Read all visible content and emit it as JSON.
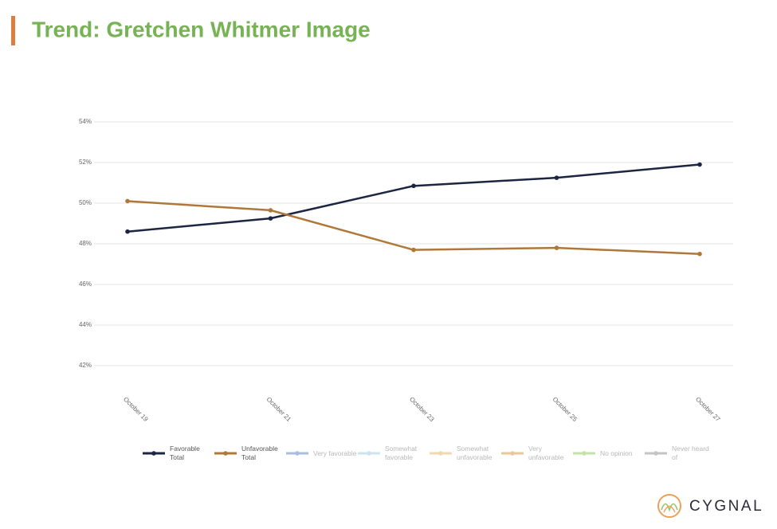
{
  "chart_data": {
    "type": "line",
    "title": "Trend: Gretchen Whitmer Image",
    "categories": [
      "October 19",
      "October 21",
      "October 23",
      "October 25",
      "October 27"
    ],
    "series": [
      {
        "name": "Favorable Total",
        "color": "#1c2541",
        "values": [
          48.6,
          49.25,
          50.85,
          51.25,
          51.9
        ]
      },
      {
        "name": "Unfavorable Total",
        "color": "#b07838",
        "values": [
          50.1,
          49.65,
          47.7,
          47.8,
          47.5
        ]
      },
      {
        "name": "Very favorable",
        "color": "#a9bde0",
        "hidden": true,
        "values": [
          null,
          null,
          null,
          null,
          null
        ]
      },
      {
        "name": "Somewhat favorable",
        "color": "#cde4f0",
        "hidden": true,
        "values": [
          null,
          null,
          null,
          null,
          null
        ]
      },
      {
        "name": "Somewhat unfavorable",
        "color": "#f0d9b0",
        "hidden": true,
        "values": [
          null,
          null,
          null,
          null,
          null
        ]
      },
      {
        "name": "Very unfavorable",
        "color": "#e8c89a",
        "hidden": true,
        "values": [
          null,
          null,
          null,
          null,
          null
        ]
      },
      {
        "name": "No opinion",
        "color": "#c6e2a8",
        "hidden": true,
        "values": [
          null,
          null,
          null,
          null,
          null
        ]
      },
      {
        "name": "Never heard of",
        "color": "#c4c4c4",
        "hidden": true,
        "values": [
          null,
          null,
          null,
          null,
          null
        ]
      }
    ],
    "ylim": [
      42,
      54
    ],
    "yticks": [
      {
        "value": 42,
        "label": "42%"
      },
      {
        "value": 44,
        "label": "44%"
      },
      {
        "value": 46,
        "label": "46%"
      },
      {
        "value": 48,
        "label": "48%"
      },
      {
        "value": 50,
        "label": "50%"
      },
      {
        "value": 52,
        "label": "52%"
      },
      {
        "value": 54,
        "label": "54%"
      }
    ],
    "grid": true,
    "legend": "bottom"
  },
  "brand": "CYGNAL"
}
